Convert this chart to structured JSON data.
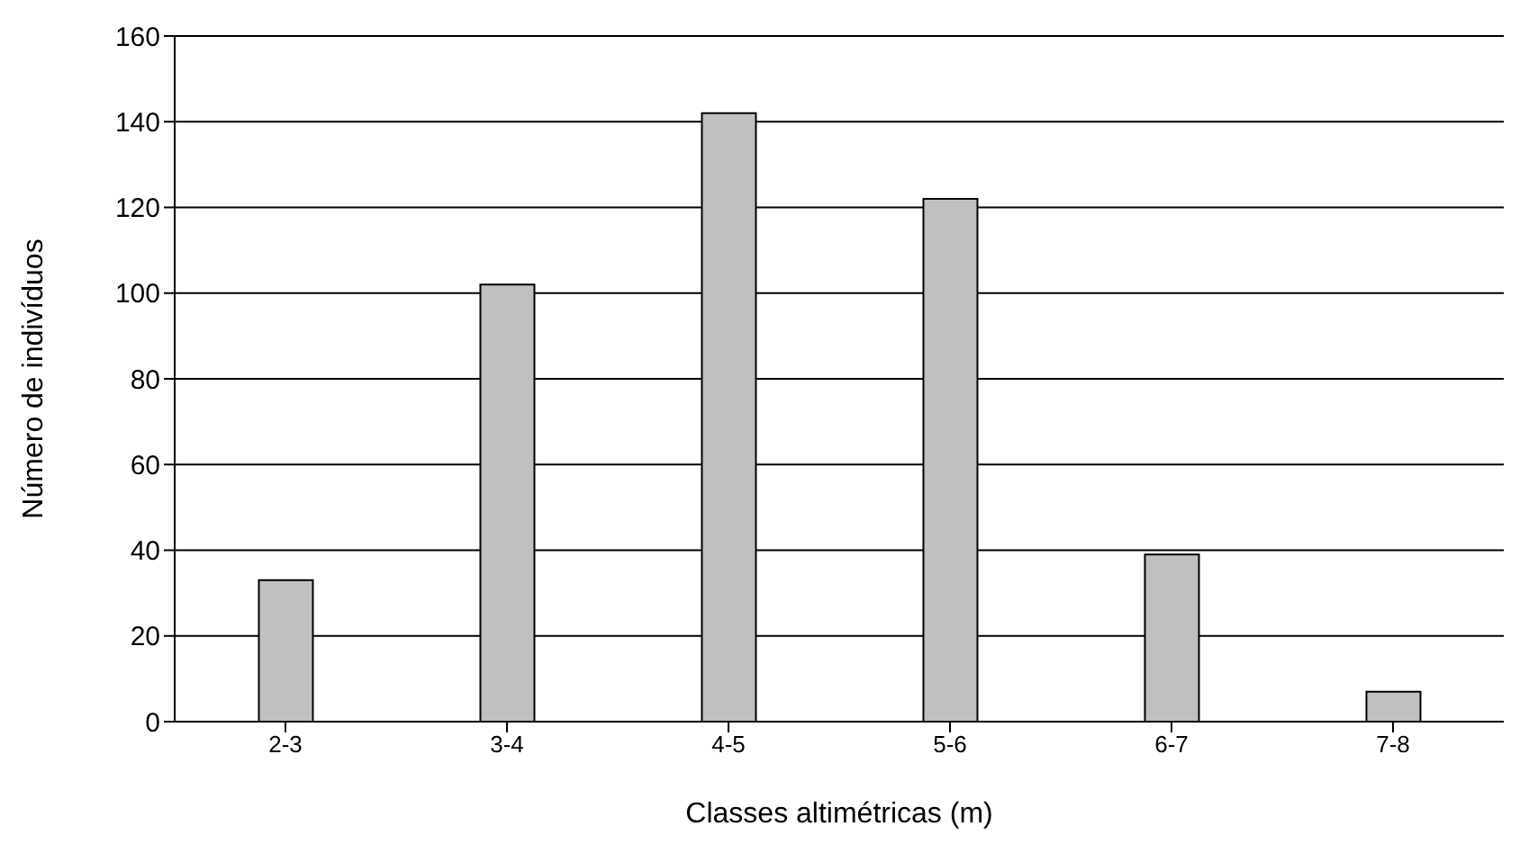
{
  "chart_data": {
    "type": "bar",
    "xlabel": "Classes altimétricas (m)",
    "ylabel": "Número de indivíduos",
    "categories": [
      "2-3",
      "3-4",
      "4-5",
      "5-6",
      "6-7",
      "7-8"
    ],
    "values": [
      33,
      102,
      142,
      122,
      39,
      7
    ],
    "color": "#c0c0c0",
    "ylim": [
      0,
      160
    ],
    "yticks": [
      0,
      20,
      40,
      60,
      80,
      100,
      120,
      140,
      160
    ],
    "grid": "y"
  }
}
